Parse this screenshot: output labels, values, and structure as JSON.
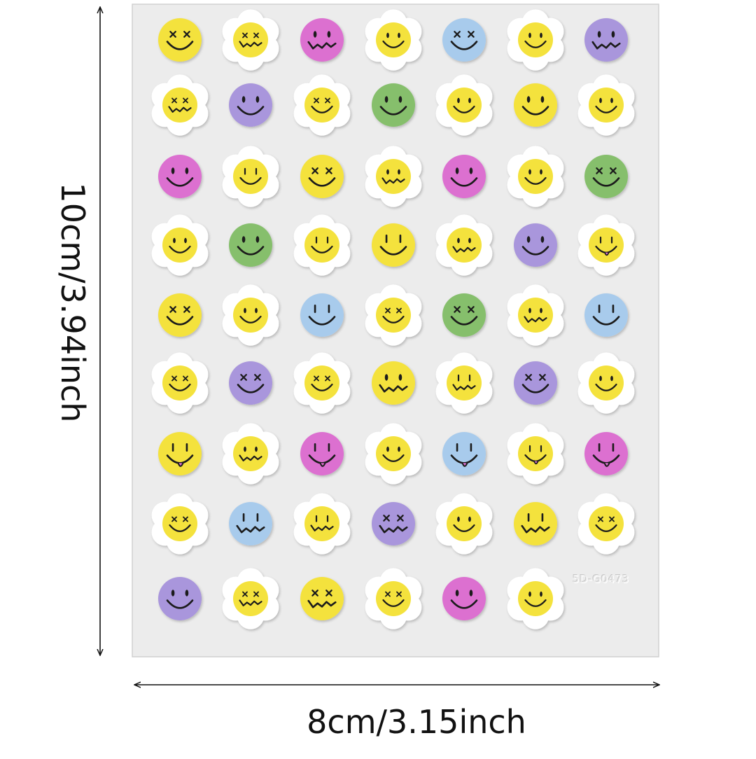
{
  "dimensions": {
    "width_label": "8cm/3.15inch",
    "height_label": "10cm/3.94inch"
  },
  "sheet": {
    "code": "5D-G0473",
    "background": "#ececec",
    "border": "#d0d0d0"
  },
  "colors": {
    "yellow": "#f4e23e",
    "purple": "#a996dc",
    "pink": "#dc6fd0",
    "green": "#86bf6c",
    "blue": "#a8cbec",
    "petal": "#ffffff",
    "ink": "#1b1b1b"
  },
  "stickers": [
    [
      {
        "s": "circle",
        "c": "yellow",
        "e": "x",
        "m": "smile"
      },
      {
        "s": "flower",
        "c": "yellow",
        "e": "x",
        "m": "wavy"
      },
      {
        "s": "circle",
        "c": "pink",
        "e": "oval",
        "m": "wavy"
      },
      {
        "s": "flower",
        "c": "yellow",
        "e": "oval",
        "m": "smile"
      },
      {
        "s": "circle",
        "c": "blue",
        "e": "x",
        "m": "smile"
      },
      {
        "s": "flower",
        "c": "yellow",
        "e": "oval",
        "m": "smile"
      },
      {
        "s": "circle",
        "c": "purple",
        "e": "oval",
        "m": "wavy"
      }
    ],
    [
      {
        "s": "flower",
        "c": "yellow",
        "e": "x",
        "m": "wavy"
      },
      {
        "s": "circle",
        "c": "purple",
        "e": "oval",
        "m": "smile"
      },
      {
        "s": "flower",
        "c": "yellow",
        "e": "x",
        "m": "smile"
      },
      {
        "s": "circle",
        "c": "green",
        "e": "oval",
        "m": "smile"
      },
      {
        "s": "flower",
        "c": "yellow",
        "e": "oval",
        "m": "smile"
      },
      {
        "s": "circle",
        "c": "yellow",
        "e": "oval",
        "m": "smile"
      },
      {
        "s": "flower",
        "c": "yellow",
        "e": "oval",
        "m": "smile"
      }
    ],
    [
      {
        "s": "circle",
        "c": "pink",
        "e": "oval",
        "m": "smile"
      },
      {
        "s": "flower",
        "c": "yellow",
        "e": "line",
        "m": "smile"
      },
      {
        "s": "circle",
        "c": "yellow",
        "e": "x",
        "m": "smile"
      },
      {
        "s": "flower",
        "c": "yellow",
        "e": "oval",
        "m": "wavy"
      },
      {
        "s": "circle",
        "c": "pink",
        "e": "oval",
        "m": "smile"
      },
      {
        "s": "flower",
        "c": "yellow",
        "e": "oval",
        "m": "smile"
      },
      {
        "s": "circle",
        "c": "green",
        "e": "x",
        "m": "smile"
      }
    ],
    [
      {
        "s": "flower",
        "c": "yellow",
        "e": "oval",
        "m": "smile"
      },
      {
        "s": "circle",
        "c": "green",
        "e": "oval",
        "m": "smile"
      },
      {
        "s": "flower",
        "c": "yellow",
        "e": "line",
        "m": "smile"
      },
      {
        "s": "circle",
        "c": "yellow",
        "e": "line",
        "m": "smile"
      },
      {
        "s": "flower",
        "c": "yellow",
        "e": "oval",
        "m": "wavy"
      },
      {
        "s": "circle",
        "c": "purple",
        "e": "oval",
        "m": "smile"
      },
      {
        "s": "flower",
        "c": "yellow",
        "e": "line",
        "m": "tongue"
      }
    ],
    [
      {
        "s": "circle",
        "c": "yellow",
        "e": "x",
        "m": "smile"
      },
      {
        "s": "flower",
        "c": "yellow",
        "e": "oval",
        "m": "smile"
      },
      {
        "s": "circle",
        "c": "blue",
        "e": "line",
        "m": "smile"
      },
      {
        "s": "flower",
        "c": "yellow",
        "e": "x",
        "m": "smile"
      },
      {
        "s": "circle",
        "c": "green",
        "e": "x",
        "m": "smile"
      },
      {
        "s": "flower",
        "c": "yellow",
        "e": "oval",
        "m": "wavy"
      },
      {
        "s": "circle",
        "c": "blue",
        "e": "line",
        "m": "smile"
      }
    ],
    [
      {
        "s": "flower",
        "c": "yellow",
        "e": "x",
        "m": "smile"
      },
      {
        "s": "circle",
        "c": "purple",
        "e": "x",
        "m": "smile"
      },
      {
        "s": "flower",
        "c": "yellow",
        "e": "x",
        "m": "smile"
      },
      {
        "s": "circle",
        "c": "yellow",
        "e": "oval",
        "m": "wavy"
      },
      {
        "s": "flower",
        "c": "yellow",
        "e": "line",
        "m": "wavy"
      },
      {
        "s": "circle",
        "c": "purple",
        "e": "x",
        "m": "smile"
      },
      {
        "s": "flower",
        "c": "yellow",
        "e": "oval",
        "m": "smile"
      }
    ],
    [
      {
        "s": "circle",
        "c": "yellow",
        "e": "line",
        "m": "tongue"
      },
      {
        "s": "flower",
        "c": "yellow",
        "e": "oval",
        "m": "wavy"
      },
      {
        "s": "circle",
        "c": "pink",
        "e": "line",
        "m": "tongue"
      },
      {
        "s": "flower",
        "c": "yellow",
        "e": "oval",
        "m": "smile"
      },
      {
        "s": "circle",
        "c": "blue",
        "e": "line",
        "m": "tongue"
      },
      {
        "s": "flower",
        "c": "yellow",
        "e": "line",
        "m": "tongue"
      },
      {
        "s": "circle",
        "c": "pink",
        "e": "line",
        "m": "tongue"
      }
    ],
    [
      {
        "s": "flower",
        "c": "yellow",
        "e": "x",
        "m": "smile"
      },
      {
        "s": "circle",
        "c": "blue",
        "e": "line",
        "m": "wavy"
      },
      {
        "s": "flower",
        "c": "yellow",
        "e": "line",
        "m": "wavy"
      },
      {
        "s": "circle",
        "c": "purple",
        "e": "x",
        "m": "wavy"
      },
      {
        "s": "flower",
        "c": "yellow",
        "e": "oval",
        "m": "smile"
      },
      {
        "s": "circle",
        "c": "yellow",
        "e": "line",
        "m": "wavy"
      },
      {
        "s": "flower",
        "c": "yellow",
        "e": "x",
        "m": "smile"
      }
    ],
    [
      {
        "s": "circle",
        "c": "purple",
        "e": "oval",
        "m": "smile"
      },
      {
        "s": "flower",
        "c": "yellow",
        "e": "x",
        "m": "wavy"
      },
      {
        "s": "circle",
        "c": "yellow",
        "e": "x",
        "m": "wavy"
      },
      {
        "s": "flower",
        "c": "yellow",
        "e": "x",
        "m": "smile"
      },
      {
        "s": "circle",
        "c": "pink",
        "e": "oval",
        "m": "smile"
      },
      {
        "s": "flower",
        "c": "yellow",
        "e": "oval",
        "m": "smile"
      }
    ]
  ]
}
